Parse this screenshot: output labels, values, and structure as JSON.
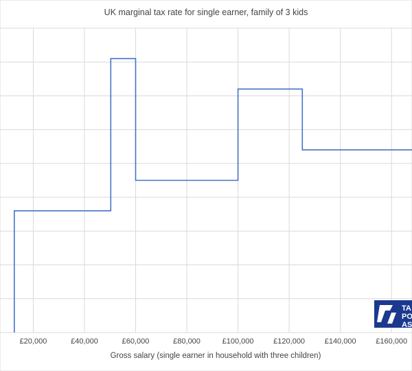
{
  "chart_data": {
    "type": "line",
    "title": "UK marginal tax rate for single earner, family of 3 kids",
    "xlabel": "Gross salary (single earner in household with three children)",
    "ylabel": "",
    "x_tick_labels": [
      "£20,000",
      "£40,000",
      "£60,000",
      "£80,000",
      "£100,000",
      "£120,000",
      "£140,000",
      "£160,000"
    ],
    "x_ticks": [
      20000,
      40000,
      60000,
      80000,
      100000,
      120000,
      140000,
      160000
    ],
    "xlim": [
      7000,
      168000
    ],
    "ylim": [
      0,
      90
    ],
    "grid": true,
    "series": [
      {
        "step": true,
        "color": "#4472c4",
        "x": [
          12570,
          12570,
          50270,
          50270,
          60000,
          60000,
          100000,
          100000,
          125140,
          125140,
          168000
        ],
        "y": [
          0,
          36,
          36,
          81,
          81,
          45,
          45,
          72,
          72,
          54,
          54
        ]
      }
    ]
  },
  "logo": {
    "letters": [
      "TA",
      "PO",
      "AS"
    ],
    "color": "#1b3a8f"
  }
}
